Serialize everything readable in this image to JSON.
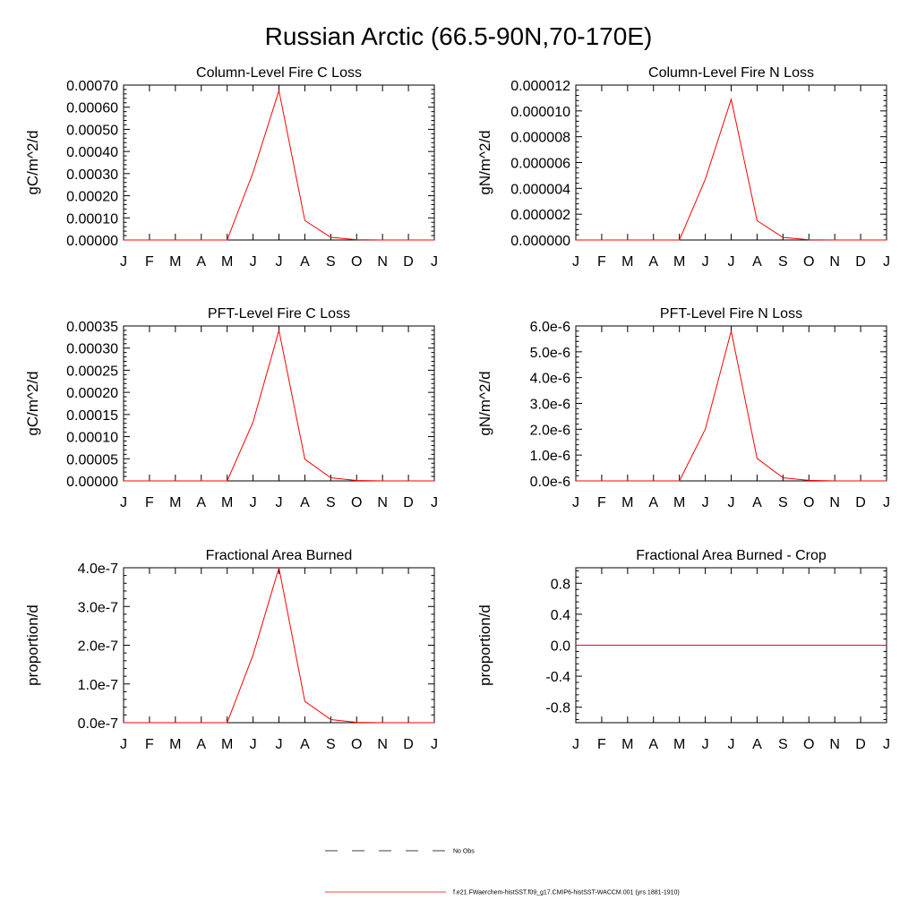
{
  "title": "Russian Arctic (66.5-90N,70-170E)",
  "months": [
    "J",
    "F",
    "M",
    "A",
    "M",
    "J",
    "J",
    "A",
    "S",
    "O",
    "N",
    "D",
    "J"
  ],
  "line_color": "#ff0000",
  "chart_data": [
    {
      "type": "line",
      "title": "Column-Level Fire C Loss",
      "ylabel": "gC/m^2/d",
      "ylim": [
        0,
        0.0007
      ],
      "yticks": [
        0,
        0.0001,
        0.0002,
        0.0003,
        0.0004,
        0.0005,
        0.0006,
        0.0007
      ],
      "ytick_labels": [
        "0.00000",
        "0.00010",
        "0.00020",
        "0.00030",
        "0.00040",
        "0.00050",
        "0.00060",
        "0.00070"
      ],
      "series": [
        {
          "values": [
            0,
            0,
            0,
            0,
            0,
            0.000305,
            0.000675,
            8.8e-05,
            1.2e-05,
            1.5e-06,
            0,
            0,
            0
          ]
        }
      ]
    },
    {
      "type": "line",
      "title": "Column-Level Fire N Loss",
      "ylabel": "gN/m^2/d",
      "ylim": [
        0,
        1.2e-05
      ],
      "yticks": [
        0,
        2e-06,
        4e-06,
        6e-06,
        8e-06,
        1e-05,
        1.2e-05
      ],
      "ytick_labels": [
        "0.000000",
        "0.000002",
        "0.000004",
        "0.000006",
        "0.000008",
        "0.000010",
        "0.000012"
      ],
      "series": [
        {
          "values": [
            0,
            0,
            0,
            0,
            0,
            4.7e-06,
            1.09e-05,
            1.5e-06,
            2e-07,
            2e-08,
            0,
            0,
            0
          ]
        }
      ]
    },
    {
      "type": "line",
      "title": "PFT-Level Fire C Loss",
      "ylabel": "gC/m^2/d",
      "ylim": [
        0,
        0.00035
      ],
      "yticks": [
        0,
        5e-05,
        0.0001,
        0.00015,
        0.0002,
        0.00025,
        0.0003,
        0.00035
      ],
      "ytick_labels": [
        "0.00000",
        "0.00005",
        "0.00010",
        "0.00015",
        "0.00020",
        "0.00025",
        "0.00030",
        "0.00035"
      ],
      "series": [
        {
          "values": [
            0,
            0,
            0,
            0,
            0,
            0.000133,
            0.00034,
            4.9e-05,
            7e-06,
            1e-06,
            0,
            0,
            0
          ]
        }
      ]
    },
    {
      "type": "line",
      "title": "PFT-Level Fire N Loss",
      "ylabel": "gN/m^2/d",
      "ylim": [
        0,
        6e-06
      ],
      "yticks": [
        0,
        1e-06,
        2e-06,
        3e-06,
        4e-06,
        5e-06,
        6e-06
      ],
      "ytick_labels": [
        "0.0e-6",
        "1.0e-6",
        "2.0e-6",
        "3.0e-6",
        "4.0e-6",
        "5.0e-6",
        "6.0e-6"
      ],
      "series": [
        {
          "values": [
            0,
            0,
            0,
            0,
            0,
            2e-06,
            5.8e-06,
            8.7e-07,
            1.2e-07,
            2e-08,
            0,
            0,
            0
          ]
        }
      ]
    },
    {
      "type": "line",
      "title": "Fractional Area Burned",
      "ylabel": "proportion/d",
      "ylim": [
        0,
        4e-07
      ],
      "yticks": [
        0,
        1e-07,
        2e-07,
        3e-07,
        4e-07
      ],
      "ytick_labels": [
        "0.0e-7",
        "1.0e-7",
        "2.0e-7",
        "3.0e-7",
        "4.0e-7"
      ],
      "series": [
        {
          "values": [
            0,
            0,
            0,
            0,
            0,
            1.75e-07,
            4e-07,
            5.5e-08,
            8e-09,
            1e-09,
            0,
            0,
            0
          ]
        }
      ]
    },
    {
      "type": "line",
      "title": "Fractional Area Burned - Crop",
      "ylabel": "proportion/d",
      "ylim": [
        -1,
        1
      ],
      "yticks": [
        -0.8,
        -0.4,
        0,
        0.4,
        0.8
      ],
      "ytick_labels": [
        "-0.8",
        "-0.4",
        "0.0",
        "0.4",
        "0.8"
      ],
      "series": [
        {
          "values": [
            0,
            0,
            0,
            0,
            0,
            0,
            0,
            0,
            0,
            0,
            0,
            0,
            0
          ]
        }
      ]
    }
  ],
  "legend": [
    {
      "label": "No Obs",
      "style": "dashed",
      "color": "#000000"
    },
    {
      "label": "f.e21.FWaerchem-histSST.f09_g17.CMIP6-histSST-WACCM.001 (yrs 1881-1910)",
      "style": "solid",
      "color": "#ff0000"
    }
  ]
}
